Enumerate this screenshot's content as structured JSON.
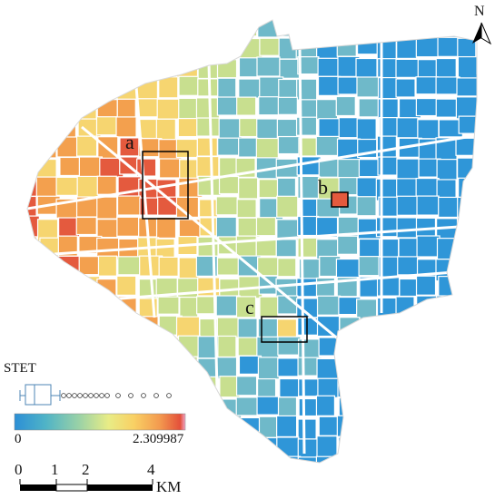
{
  "map": {
    "north_label": "N",
    "annotations": [
      {
        "id": "a",
        "label": "a"
      },
      {
        "id": "b",
        "label": "b"
      },
      {
        "id": "c",
        "label": "c"
      }
    ],
    "variable": "STET",
    "colorbar": {
      "min_label": "0",
      "max_label": "2.309987",
      "stops": [
        "#2c8fd6",
        "#4fb3c7",
        "#9bd2a6",
        "#e8ec86",
        "#f9d064",
        "#f39a4f",
        "#e4503a",
        "#f0a6c8"
      ]
    },
    "boxplot_outliers": 14,
    "scalebar": {
      "ticks": [
        "0",
        "1",
        "2",
        "4"
      ],
      "unit": "KM"
    },
    "colors": {
      "high": "#e45a3e",
      "mid_high": "#f3a04e",
      "mid": "#f6d570",
      "low_mid": "#c8df8f",
      "low": "#6fb9c9",
      "lowest": "#2f96d8",
      "road": "#ffffff"
    }
  }
}
